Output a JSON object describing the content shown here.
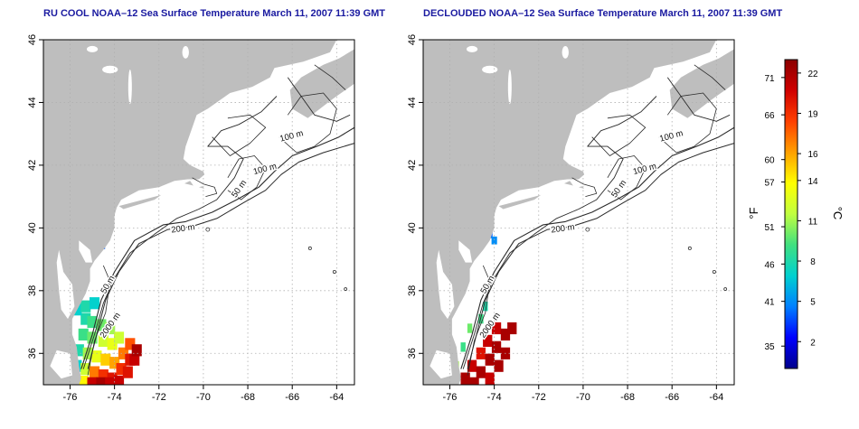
{
  "panels": [
    {
      "title": "RU COOL NOAA–12 Sea Surface Temperature March 11, 2007 11:39 GMT"
    },
    {
      "title": "DECLOUDED NOAA–12 Sea Surface Temperature March 11, 2007 11:39 GMT"
    }
  ],
  "axes": {
    "x_ticks": [
      "-76",
      "-74",
      "-72",
      "-70",
      "-68",
      "-66",
      "-64"
    ],
    "y_ticks": [
      "36",
      "38",
      "40",
      "42",
      "44",
      "46"
    ],
    "x_range": [
      -77.2,
      -63.2
    ],
    "y_range": [
      35.0,
      46.0
    ],
    "grid": "dotted"
  },
  "contour_labels": [
    {
      "text": "100 m",
      "lon": -66.0,
      "lat": 42.85,
      "rot": -15
    },
    {
      "text": "100 m",
      "lon": -67.2,
      "lat": 41.8,
      "rot": -15
    },
    {
      "text": "50 m",
      "lon": -68.3,
      "lat": 41.2,
      "rot": -55
    },
    {
      "text": "200 m",
      "lon": -70.9,
      "lat": 39.9,
      "rot": -8
    },
    {
      "text": "50 m",
      "lon": -74.2,
      "lat": 38.15,
      "rot": -60
    },
    {
      "text": "2000 m",
      "lon": -74.1,
      "lat": 36.85,
      "rot": -55
    }
  ],
  "colorbar": {
    "fahrenheit_label": "°F",
    "celsius_label": "°C",
    "fahrenheit_ticks": [
      "71",
      "66",
      "60",
      "57",
      "51",
      "46",
      "41",
      "35"
    ],
    "celsius_ticks": [
      "22",
      "19",
      "16",
      "14",
      "11",
      "8",
      "5",
      "2"
    ],
    "fahrenheit_values": [
      71,
      66,
      60,
      57,
      51,
      46,
      41,
      35
    ],
    "celsius_values": [
      22,
      19,
      16,
      14,
      11,
      8,
      5,
      2
    ],
    "celsius_range": [
      0,
      23
    ],
    "colors": [
      "#00008b",
      "#0000ff",
      "#0080ff",
      "#00d0d0",
      "#40e080",
      "#c0ff40",
      "#ffff00",
      "#ffa000",
      "#ff4000",
      "#d00000",
      "#8b0000"
    ]
  },
  "colors": {
    "land": "#bebebe",
    "water": "#ffffff",
    "title": "#1a1aa0"
  }
}
